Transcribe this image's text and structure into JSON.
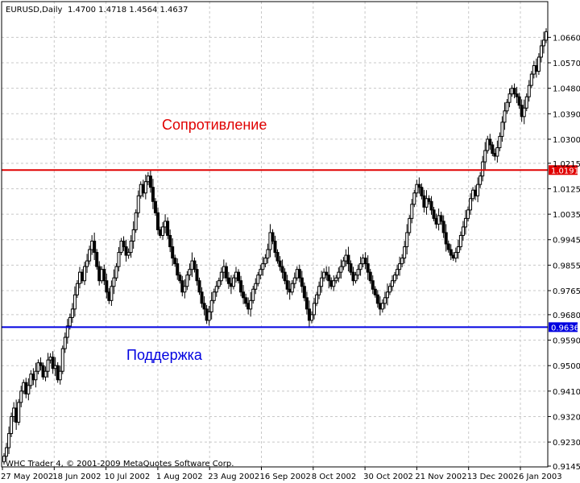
{
  "header": {
    "title": "EURUSD,Daily",
    "ohlc": "1.4700 1.4718 1.4564 1.4637"
  },
  "footer": {
    "copyright": "WHC Trader 4, © 2001-2009 MetaQuotes Software Corp."
  },
  "colors": {
    "grid": "#c8c8c8",
    "frame": "#000000",
    "candle": "#000000",
    "resistance": "#e00000",
    "support": "#0000e0"
  },
  "chart_data": {
    "type": "candlestick",
    "title": "EURUSD,Daily",
    "ylim": [
      0.9145,
      1.0735
    ],
    "grid": true,
    "y_ticks": [
      "1.0660",
      "1.0570",
      "1.0480",
      "1.0390",
      "1.0300",
      "1.0215",
      "1.0125",
      "1.0035",
      "0.9945",
      "0.9855",
      "0.9765",
      "0.9680",
      "0.9590",
      "0.9500",
      "0.9410",
      "0.9320",
      "0.9230",
      "0.9145"
    ],
    "x_ticks": [
      "27 May 2002",
      "18 Jun 2002",
      "10 Jul 2002",
      "1 Aug 2002",
      "23 Aug 2002",
      "16 Sep 2002",
      "8 Oct 2002",
      "30 Oct 2002",
      "21 Nov 2002",
      "13 Dec 2002",
      "6 Jan 2003"
    ],
    "levels": [
      {
        "name": "resistance",
        "value": 1.0191,
        "label": "1.0191",
        "annotation": "Сопротивление"
      },
      {
        "name": "support",
        "value": 0.9636,
        "label": "0.9636",
        "annotation": "Поддержка"
      }
    ],
    "closes": [
      0.918,
      0.921,
      0.926,
      0.932,
      0.935,
      0.93,
      0.937,
      0.941,
      0.944,
      0.94,
      0.943,
      0.947,
      0.945,
      0.948,
      0.951,
      0.95,
      0.946,
      0.948,
      0.952,
      0.953,
      0.949,
      0.95,
      0.945,
      0.948,
      0.956,
      0.96,
      0.964,
      0.967,
      0.97,
      0.975,
      0.979,
      0.983,
      0.98,
      0.985,
      0.987,
      0.991,
      0.994,
      0.99,
      0.985,
      0.98,
      0.984,
      0.98,
      0.976,
      0.973,
      0.978,
      0.981,
      0.985,
      0.99,
      0.994,
      0.992,
      0.989,
      0.99,
      0.994,
      0.998,
      1.004,
      1.01,
      1.014,
      1.011,
      1.015,
      1.017,
      1.013,
      1.008,
      1.004,
      0.998,
      0.996,
      0.999,
      1.001,
      0.996,
      0.992,
      0.988,
      0.986,
      0.982,
      0.98,
      0.976,
      0.978,
      0.982,
      0.984,
      0.987,
      0.984,
      0.98,
      0.976,
      0.972,
      0.97,
      0.966,
      0.969,
      0.973,
      0.976,
      0.978,
      0.98,
      0.983,
      0.985,
      0.981,
      0.979,
      0.978,
      0.981,
      0.983,
      0.98,
      0.976,
      0.974,
      0.972,
      0.97,
      0.973,
      0.977,
      0.979,
      0.982,
      0.984,
      0.986,
      0.988,
      0.991,
      0.997,
      0.994,
      0.99,
      0.987,
      0.985,
      0.983,
      0.98,
      0.977,
      0.976,
      0.979,
      0.981,
      0.984,
      0.981,
      0.978,
      0.974,
      0.97,
      0.966,
      0.968,
      0.972,
      0.975,
      0.978,
      0.981,
      0.983,
      0.982,
      0.98,
      0.978,
      0.98,
      0.981,
      0.983,
      0.985,
      0.987,
      0.989,
      0.986,
      0.983,
      0.98,
      0.982,
      0.984,
      0.986,
      0.988,
      0.986,
      0.983,
      0.98,
      0.977,
      0.975,
      0.972,
      0.97,
      0.972,
      0.974,
      0.976,
      0.978,
      0.98,
      0.982,
      0.984,
      0.986,
      0.988,
      0.992,
      0.997,
      1.002,
      1.007,
      1.011,
      1.014,
      1.013,
      1.01,
      1.006,
      1.009,
      1.008,
      1.005,
      1.002,
      1.0,
      1.003,
      1.001,
      0.997,
      0.993,
      0.991,
      0.989,
      0.988,
      0.99,
      0.992,
      0.996,
      0.999,
      1.002,
      1.005,
      1.009,
      1.012,
      1.01,
      1.014,
      1.017,
      1.022,
      1.026,
      1.03,
      1.028,
      1.025,
      1.024,
      1.027,
      1.031,
      1.036,
      1.04,
      1.043,
      1.046,
      1.048,
      1.046,
      1.045,
      1.042,
      1.038,
      1.041,
      1.045,
      1.049,
      1.053,
      1.056,
      1.054,
      1.059,
      1.063,
      1.065,
      1.068
    ]
  }
}
